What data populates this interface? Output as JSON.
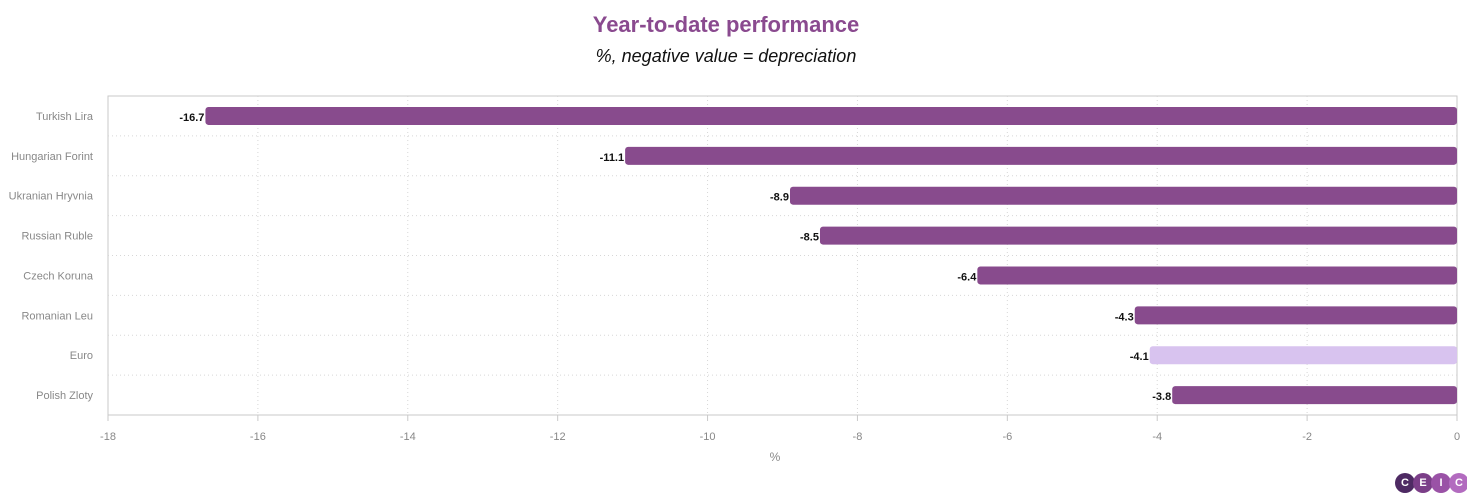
{
  "colors": {
    "title": "#8a4a8f",
    "bar": "#884b8d",
    "highlight_bar": "#d8c3ef",
    "grid": "#d7d7d7",
    "axis": "#c9c9c9",
    "logo": [
      "#4e2a63",
      "#7b3e88",
      "#9a52a6",
      "#b26bbf"
    ]
  },
  "logo": {
    "letters": [
      "C",
      "E",
      "I",
      "C"
    ]
  },
  "chart_data": {
    "type": "bar",
    "orientation": "horizontal",
    "title": "Year-to-date performance",
    "subtitle": "%, negative value = depreciation",
    "xlabel": "%",
    "ylabel": "",
    "xlim": [
      -18,
      0
    ],
    "xticks": [
      -18,
      -16,
      -14,
      -12,
      -10,
      -8,
      -6,
      -4,
      -2,
      0
    ],
    "grid": true,
    "categories": [
      "Turkish Lira",
      "Hungarian Forint",
      "Ukranian Hryvnia",
      "Russian Ruble",
      "Czech Koruna",
      "Romanian Leu",
      "Euro",
      "Polish Zloty"
    ],
    "values": [
      -16.7,
      -11.1,
      -8.9,
      -8.5,
      -6.4,
      -4.3,
      -4.1,
      -3.8
    ],
    "labels": [
      "-16.7",
      "-11.1",
      "-8.9",
      "-8.5",
      "-6.4",
      "-4.3",
      "-4.1",
      "-3.8"
    ],
    "highlight": [
      "Euro"
    ]
  }
}
